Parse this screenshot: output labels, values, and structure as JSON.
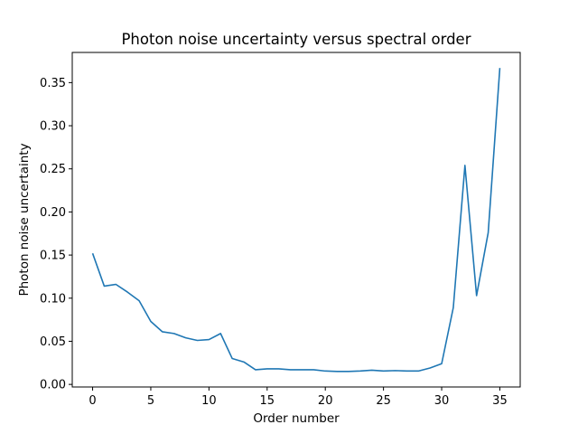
{
  "chart_data": {
    "type": "line",
    "title": "Photon noise uncertainty versus spectral order",
    "xlabel": "Order number",
    "ylabel": "Photon noise uncertainty",
    "xlim": [
      -1.75,
      36.75
    ],
    "ylim": [
      -0.003,
      0.385
    ],
    "xticks": [
      0,
      5,
      10,
      15,
      20,
      25,
      30,
      35
    ],
    "yticks": [
      0.0,
      0.05,
      0.1,
      0.15,
      0.2,
      0.25,
      0.3,
      0.35
    ],
    "xtick_labels": [
      "0",
      "5",
      "10",
      "15",
      "20",
      "25",
      "30",
      "35"
    ],
    "ytick_labels": [
      "0.00",
      "0.05",
      "0.10",
      "0.15",
      "0.20",
      "0.25",
      "0.30",
      "0.35"
    ],
    "grid": false,
    "series": [
      {
        "color": "#1f77b4",
        "x": [
          0,
          1,
          2,
          3,
          4,
          5,
          6,
          7,
          8,
          9,
          10,
          11,
          12,
          13,
          14,
          15,
          16,
          17,
          18,
          19,
          20,
          21,
          22,
          23,
          24,
          25,
          26,
          27,
          28,
          29,
          30,
          31,
          32,
          33,
          34,
          35
        ],
        "y": [
          0.152,
          0.114,
          0.116,
          0.107,
          0.097,
          0.073,
          0.061,
          0.059,
          0.054,
          0.051,
          0.052,
          0.059,
          0.03,
          0.026,
          0.017,
          0.018,
          0.018,
          0.017,
          0.017,
          0.017,
          0.0155,
          0.015,
          0.015,
          0.0155,
          0.0165,
          0.0155,
          0.016,
          0.0155,
          0.0155,
          0.019,
          0.024,
          0.089,
          0.254,
          0.103,
          0.176,
          0.367
        ]
      }
    ]
  }
}
